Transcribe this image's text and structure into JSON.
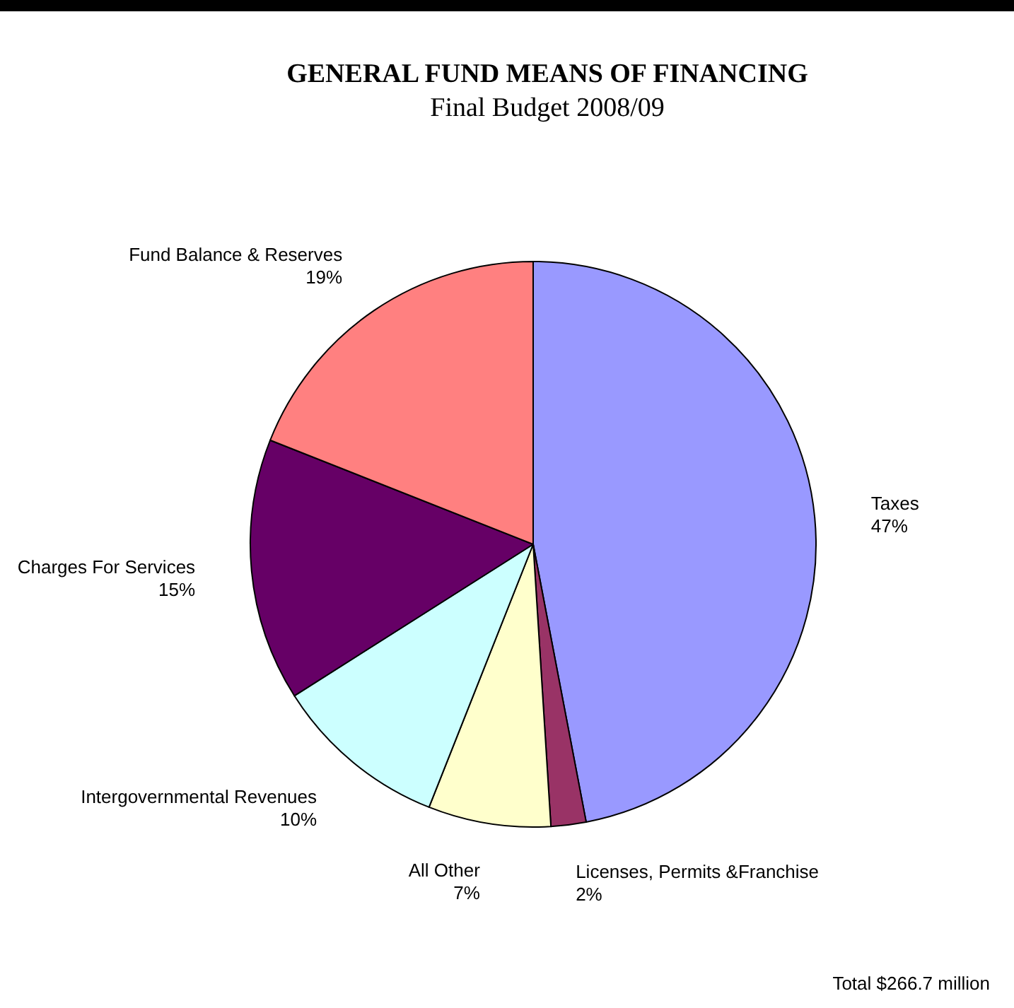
{
  "chart_data": {
    "type": "pie",
    "title": "GENERAL FUND MEANS OF FINANCING",
    "subtitle": "Final Budget 2008/09",
    "categories": [
      "Taxes",
      "Licenses, Permits &Franchise",
      "All Other",
      "Intergovernmental Revenues",
      "Charges For Services",
      "Fund Balance & Reserves"
    ],
    "values": [
      47,
      2,
      7,
      10,
      15,
      19
    ],
    "value_labels": [
      "47%",
      "2%",
      "7%",
      "10%",
      "15%",
      "19%"
    ],
    "colors": [
      "#9999ff",
      "#993366",
      "#ffffcc",
      "#ccffff",
      "#660066",
      "#ff8080"
    ],
    "annotations": [
      "Total $266.7 million"
    ]
  }
}
